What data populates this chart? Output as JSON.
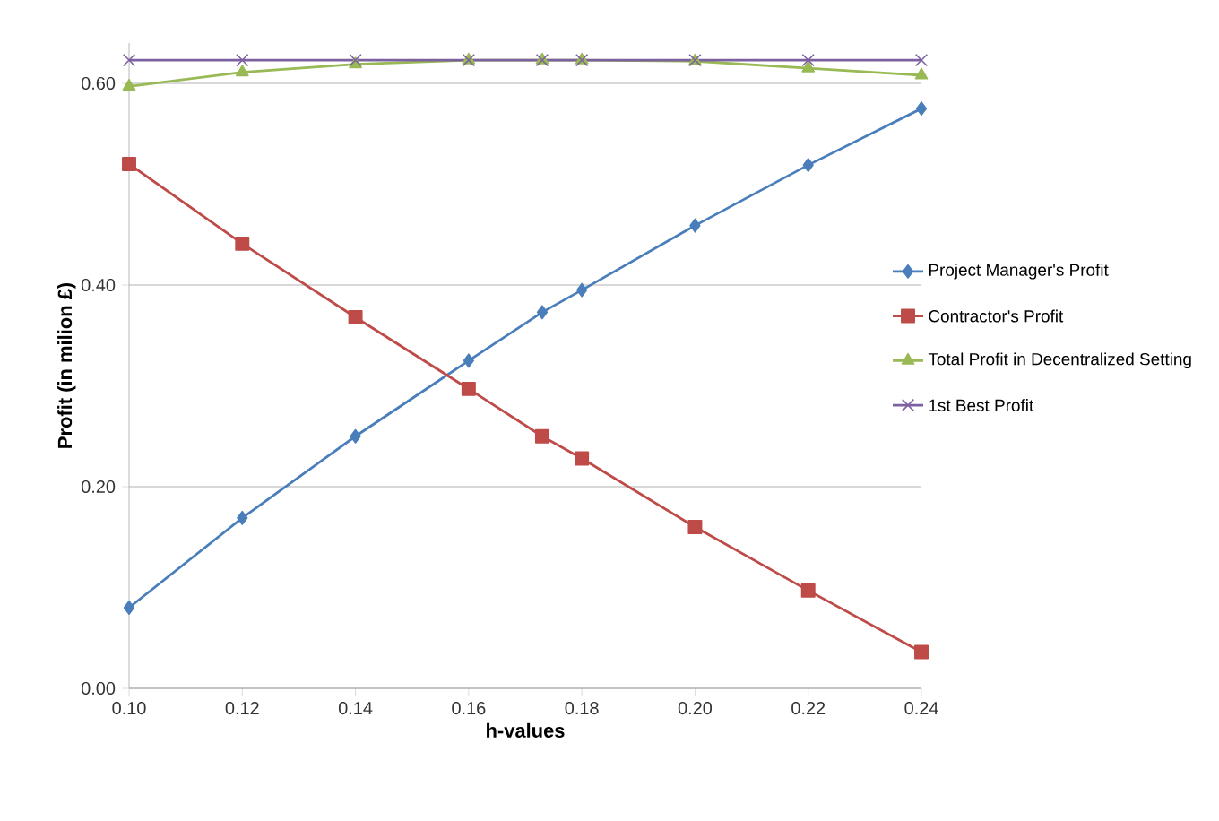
{
  "chart_data": {
    "type": "line",
    "xlabel": "h-values",
    "ylabel": "Profit (in  milion £)",
    "x": [
      0.1,
      0.12,
      0.14,
      0.16,
      0.173,
      0.18,
      0.2,
      0.22,
      0.24
    ],
    "series": [
      {
        "name": "Project Manager's Profit",
        "color": "#4a7ebb",
        "marker": "diamond",
        "values": [
          0.08,
          0.169,
          0.25,
          0.325,
          0.373,
          0.395,
          0.459,
          0.519,
          0.575
        ]
      },
      {
        "name": "Contractor's Profit",
        "color": "#be4b48",
        "marker": "square",
        "values": [
          0.52,
          0.441,
          0.368,
          0.297,
          0.25,
          0.228,
          0.16,
          0.097,
          0.036
        ]
      },
      {
        "name": "Total Profit in Decentralized Setting",
        "color": "#98b954",
        "marker": "triangle",
        "values": [
          0.597,
          0.611,
          0.619,
          0.623,
          0.623,
          0.623,
          0.622,
          0.615,
          0.608
        ]
      },
      {
        "name": "1st Best Profit",
        "color": "#7d60a0",
        "marker": "cross",
        "values": [
          0.623,
          0.623,
          0.623,
          0.623,
          0.623,
          0.623,
          0.623,
          0.623,
          0.623
        ]
      }
    ],
    "xlim": [
      0.1,
      0.24
    ],
    "xticks": [
      {
        "value": 0.1,
        "label": "0.10"
      },
      {
        "value": 0.12,
        "label": "0.12"
      },
      {
        "value": 0.14,
        "label": "0.14"
      },
      {
        "value": 0.16,
        "label": "0.16"
      },
      {
        "value": 0.18,
        "label": "0.18"
      },
      {
        "value": 0.2,
        "label": "0.20"
      },
      {
        "value": 0.22,
        "label": "0.22"
      },
      {
        "value": 0.24,
        "label": "0.24"
      }
    ],
    "ylim": [
      0,
      0.64
    ],
    "yticks": [
      {
        "value": 0,
        "label": "0.00"
      },
      {
        "value": 0.2,
        "label": "0.20"
      },
      {
        "value": 0.4,
        "label": "0.40"
      },
      {
        "value": 0.6,
        "label": "0.60"
      }
    ],
    "grid": "y",
    "legend": "right",
    "line_style": "solid"
  }
}
